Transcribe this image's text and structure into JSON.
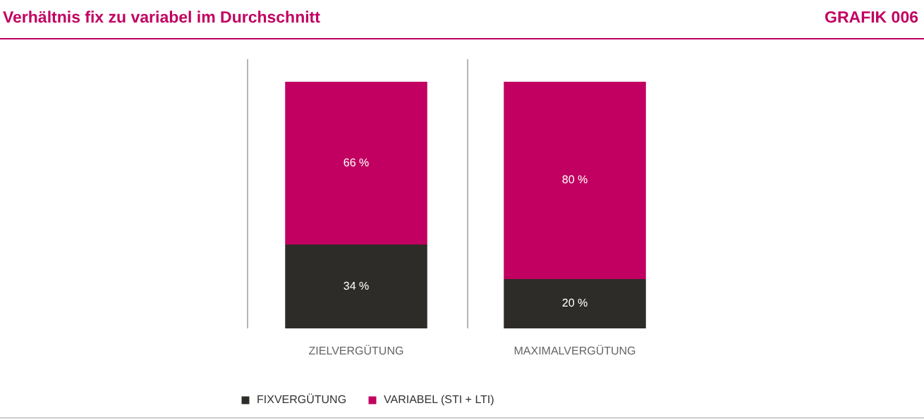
{
  "chart_data": {
    "type": "bar",
    "title": "Verhältnis fix zu variabel im Durchschnitt",
    "annotations": [
      "GRAFIK 006"
    ],
    "categories": [
      "ZIELVERGÜTUNG",
      "MAXIMALVERGÜTUNG"
    ],
    "stacked": true,
    "legend": "bottom left",
    "series": [
      {
        "name": "FIXVERGÜTUNG",
        "color": "#2e2c28",
        "values": [
          34,
          20
        ],
        "value_labels": [
          "34 %",
          "20 %"
        ]
      },
      {
        "name": "VARIABEL (STI + LTI)",
        "color": "#c10061",
        "values": [
          66,
          80
        ],
        "value_labels": [
          "66 %",
          "80 %"
        ]
      }
    ]
  }
}
